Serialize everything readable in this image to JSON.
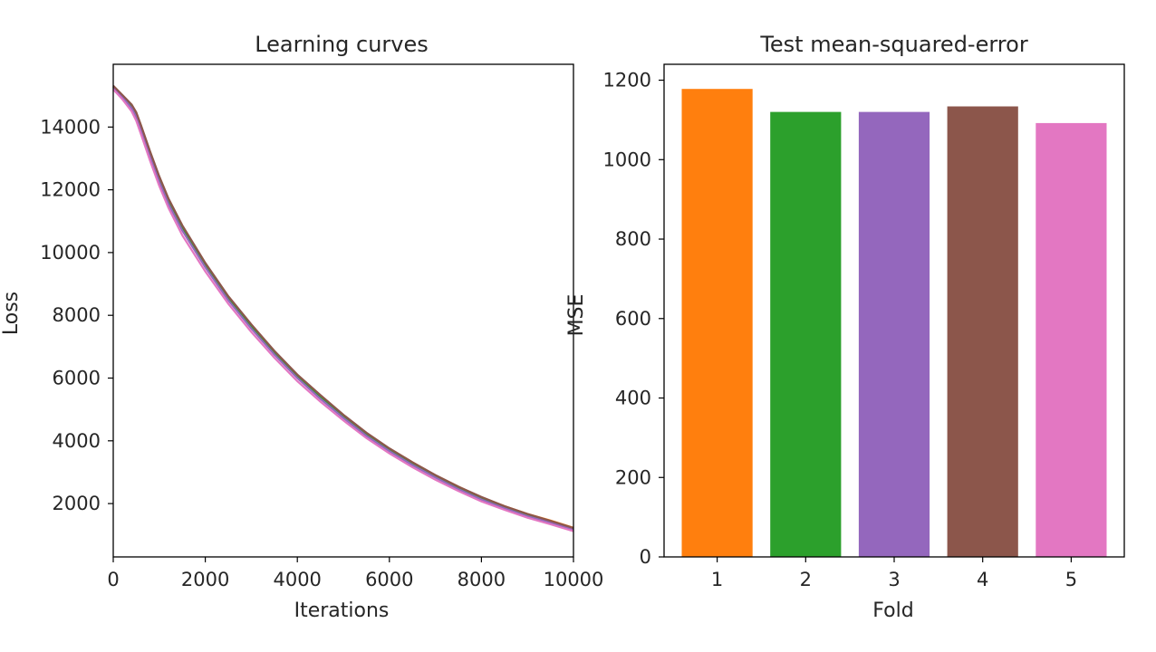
{
  "chart_data": [
    {
      "type": "line",
      "title": "Learning curves",
      "xlabel": "Iterations",
      "ylabel": "Loss",
      "xlim": [
        0,
        10000
      ],
      "ylim": [
        300,
        16000
      ],
      "xticks": [
        0,
        2000,
        4000,
        6000,
        8000,
        10000
      ],
      "yticks": [
        2000,
        4000,
        6000,
        8000,
        10000,
        12000,
        14000
      ],
      "grid": false,
      "x": [
        0,
        200,
        400,
        500,
        600,
        800,
        1000,
        1200,
        1500,
        2000,
        2500,
        3000,
        3500,
        4000,
        4500,
        5000,
        5500,
        6000,
        6500,
        7000,
        7500,
        8000,
        8500,
        9000,
        9500,
        10000
      ],
      "series": [
        {
          "color": "#ff7f0e",
          "values": [
            15300,
            15000,
            14700,
            14450,
            14050,
            13200,
            12400,
            11700,
            10850,
            9650,
            8600,
            7700,
            6850,
            6100,
            5450,
            4820,
            4250,
            3750,
            3320,
            2900,
            2540,
            2200,
            1920,
            1670,
            1460,
            1230
          ]
        },
        {
          "color": "#2ca02c",
          "values": [
            15280,
            14980,
            14650,
            14380,
            13980,
            13130,
            12330,
            11630,
            10780,
            9600,
            8560,
            7650,
            6810,
            6060,
            5400,
            4790,
            4220,
            3720,
            3280,
            2870,
            2500,
            2170,
            1890,
            1640,
            1420,
            1200
          ]
        },
        {
          "color": "#9467bd",
          "values": [
            15250,
            14950,
            14600,
            14320,
            13900,
            13050,
            12250,
            11550,
            10700,
            9530,
            8480,
            7580,
            6750,
            6000,
            5340,
            4730,
            4160,
            3670,
            3230,
            2830,
            2460,
            2130,
            1850,
            1600,
            1390,
            1170
          ]
        },
        {
          "color": "#8c564b",
          "values": [
            15320,
            15020,
            14720,
            14470,
            14070,
            13230,
            12430,
            11720,
            10870,
            9670,
            8610,
            7710,
            6870,
            6110,
            5460,
            4830,
            4260,
            3760,
            3320,
            2910,
            2540,
            2210,
            1920,
            1670,
            1450,
            1220
          ]
        },
        {
          "color": "#e377c2",
          "values": [
            15200,
            14880,
            14500,
            14200,
            13780,
            12930,
            12120,
            11420,
            10550,
            9400,
            8370,
            7470,
            6650,
            5900,
            5250,
            4650,
            4090,
            3600,
            3160,
            2760,
            2400,
            2070,
            1800,
            1550,
            1340,
            1120
          ]
        }
      ]
    },
    {
      "type": "bar",
      "title": "Test mean-squared-error",
      "xlabel": "Fold",
      "ylabel": "MSE",
      "categories": [
        "1",
        "2",
        "3",
        "4",
        "5"
      ],
      "values": [
        1178,
        1120,
        1120,
        1134,
        1092
      ],
      "colors": [
        "#ff7f0e",
        "#2ca02c",
        "#9467bd",
        "#8c564b",
        "#e377c2"
      ],
      "ylim": [
        0,
        1240
      ],
      "yticks": [
        0,
        200,
        400,
        600,
        800,
        1000,
        1200
      ],
      "grid": false
    }
  ]
}
